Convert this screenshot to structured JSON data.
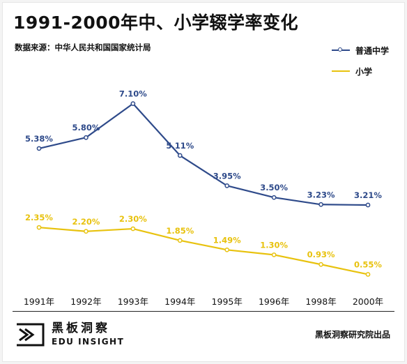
{
  "header": {
    "title": "1991-2000年中、小学辍学率变化",
    "source": "数据来源：中华人民共和国国家统计局"
  },
  "footer": {
    "logo_cn": "黑板洞察",
    "logo_en": "EDU INSIGHT",
    "credit": "黑板洞察研究院出品"
  },
  "chart_data": {
    "type": "line",
    "title": "1991-2000年中、小学辍学率变化",
    "categories": [
      "1991年",
      "1992年",
      "1993年",
      "1994年",
      "1995年",
      "1996年",
      "1998年",
      "2000年"
    ],
    "ylim": [
      0,
      8
    ],
    "grid": false,
    "legend_position": "top-right",
    "series": [
      {
        "name": "普通中学",
        "color": "#2e4a8a",
        "values": [
          5.38,
          5.8,
          7.1,
          5.11,
          3.95,
          3.5,
          3.23,
          3.21
        ],
        "labels": [
          "5.38%",
          "5.80%",
          "7.10%",
          "5.11%",
          "3.95%",
          "3.50%",
          "3.23%",
          "3.21%"
        ]
      },
      {
        "name": "小学",
        "color": "#e8c20e",
        "values": [
          2.35,
          2.2,
          2.3,
          1.85,
          1.49,
          1.3,
          0.93,
          0.55
        ],
        "labels": [
          "2.35%",
          "2.20%",
          "2.30%",
          "1.85%",
          "1.49%",
          "1.30%",
          "0.93%",
          "0.55%"
        ]
      }
    ]
  }
}
